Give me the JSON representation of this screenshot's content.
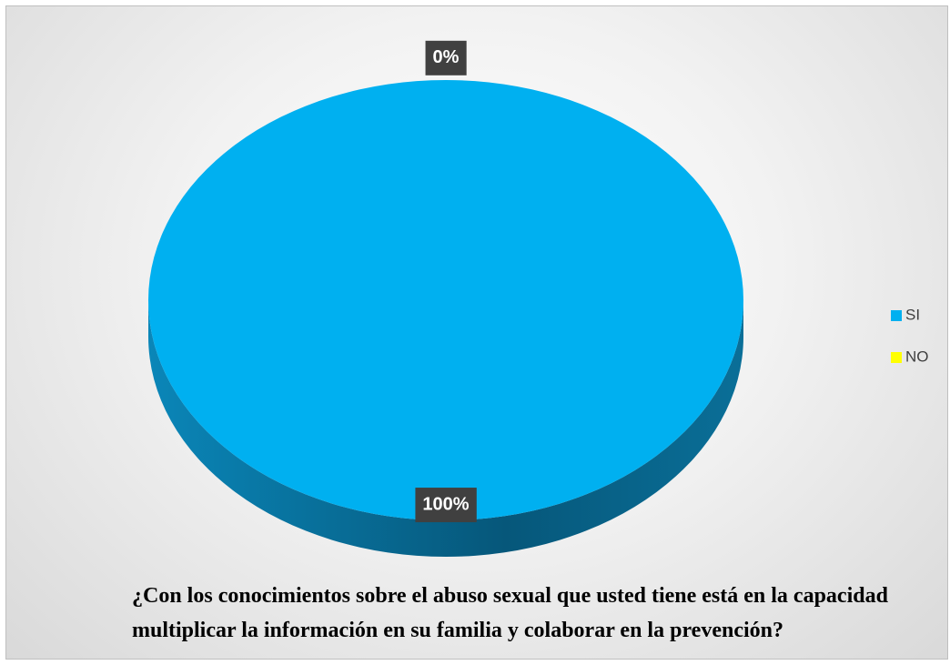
{
  "chart_data": {
    "type": "pie",
    "title": "¿Con los conocimientos sobre el abuso sexual que usted tiene está en la capacidad multiplicar la información en su familia y colaborar en la prevención?",
    "categories": [
      "SI",
      "NO"
    ],
    "values": [
      100,
      0
    ],
    "value_labels": [
      "100%",
      "0%"
    ],
    "colors": [
      "#00b0f0",
      "#ffff00"
    ],
    "legend": "right"
  }
}
